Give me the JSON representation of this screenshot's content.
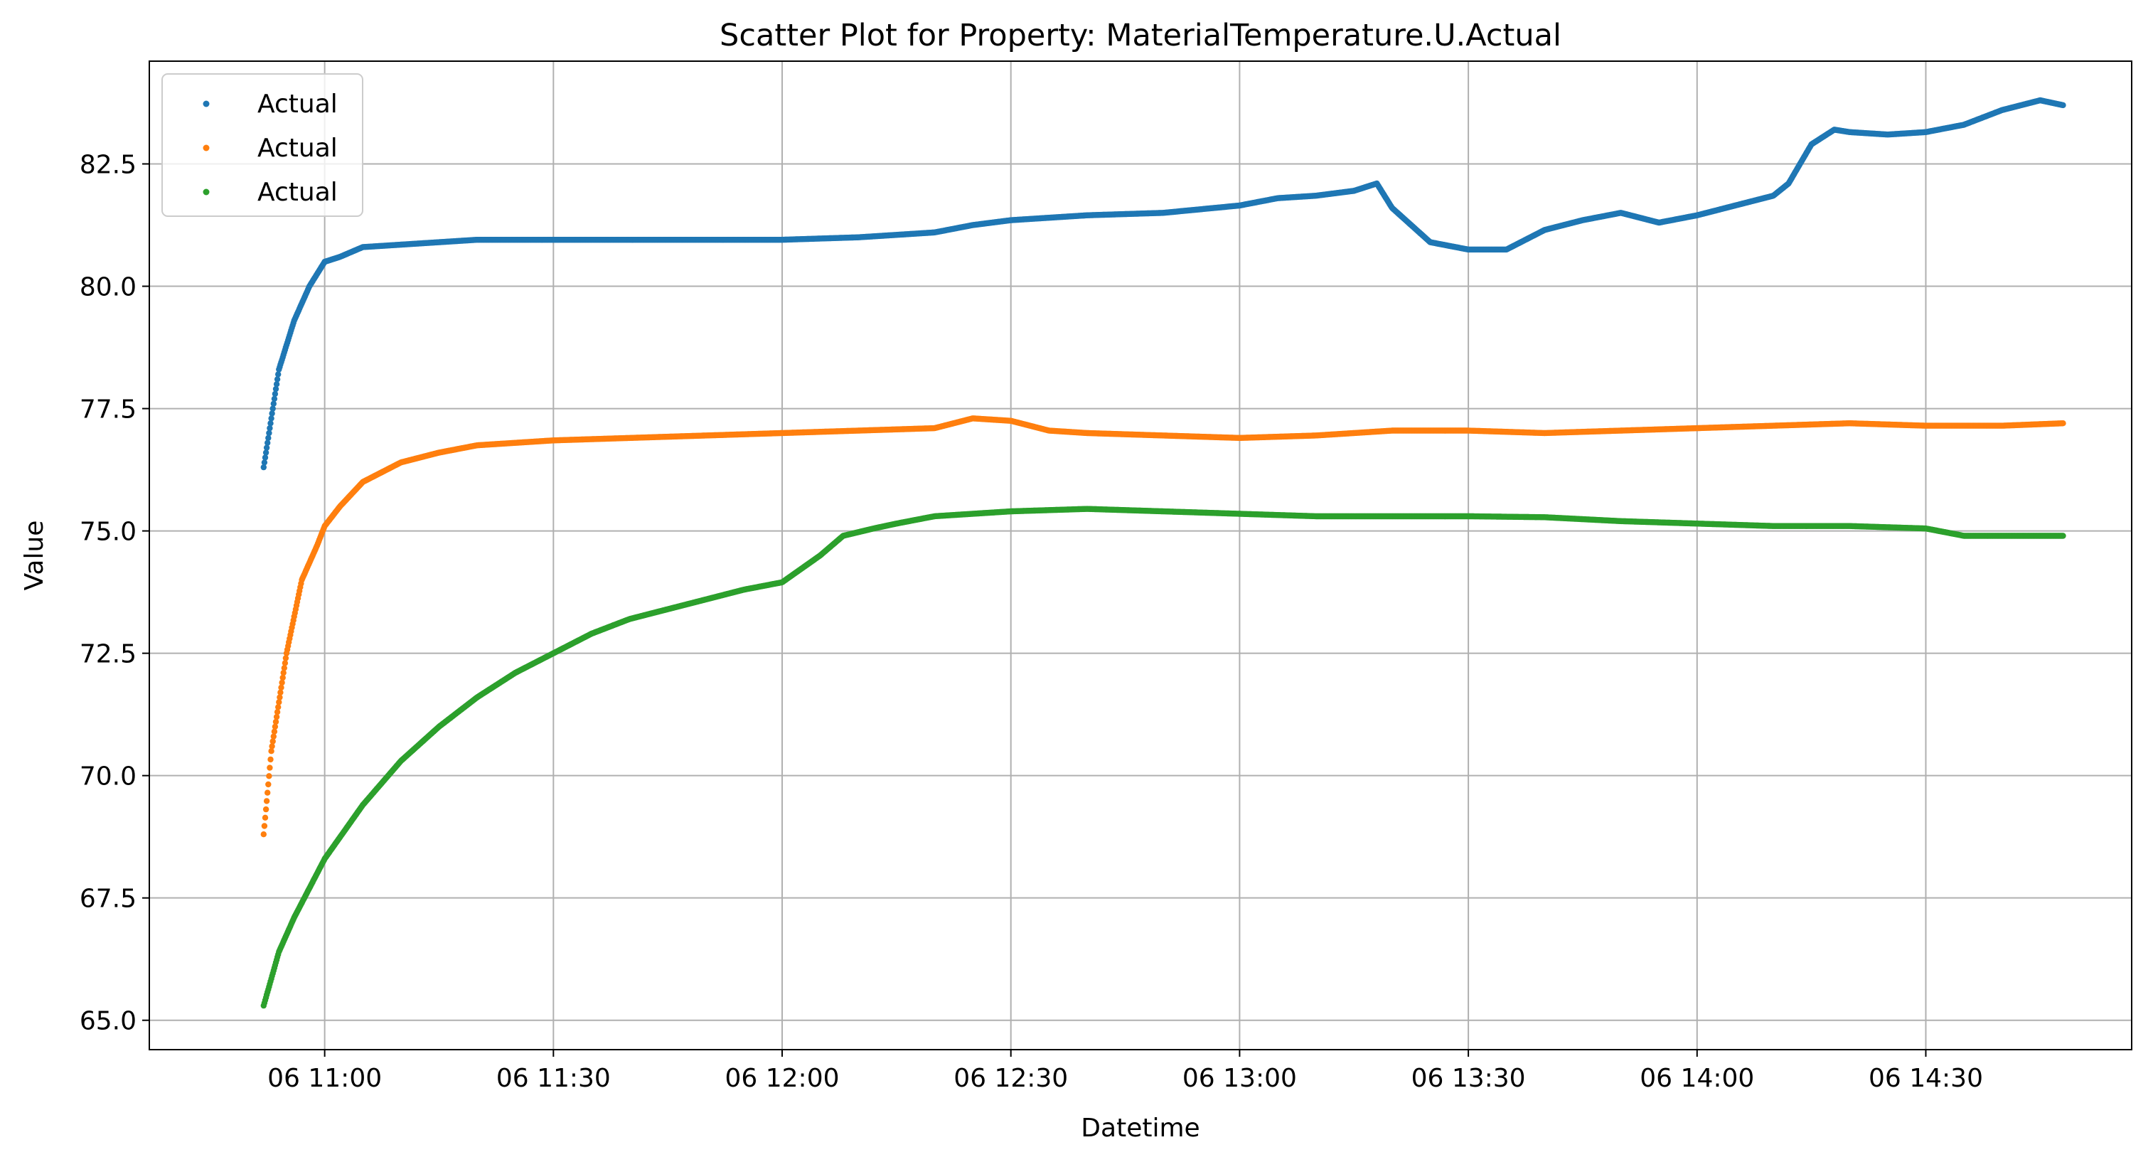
{
  "chart_data": {
    "type": "scatter",
    "title": "Scatter Plot for Property: MaterialTemperature.U.Actual",
    "xlabel": "Datetime",
    "ylabel": "Value",
    "x_tick_labels": [
      "06 11:00",
      "06 11:30",
      "06 12:00",
      "06 12:30",
      "06 13:00",
      "06 13:30",
      "06 14:00",
      "06 14:30"
    ],
    "x_ticks": [
      "10:52",
      "11:00",
      "11:30",
      "12:00",
      "12:30",
      "13:00",
      "13:30",
      "14:00",
      "14:30",
      "14:48"
    ],
    "xlim": [
      "10:37",
      "14:57"
    ],
    "ylim": [
      64.4,
      84.6
    ],
    "y_ticks": [
      65.0,
      67.5,
      70.0,
      72.5,
      75.0,
      77.5,
      80.0,
      82.5
    ],
    "y_tick_labels": [
      "65.0",
      "67.5",
      "70.0",
      "72.5",
      "75.0",
      "77.5",
      "80.0",
      "82.5"
    ],
    "grid": true,
    "legend_position": "upper-left",
    "series": [
      {
        "name": "Actual",
        "color": "#1f77b4",
        "x": [
          "10:52",
          "10:54",
          "10:56",
          "10:58",
          "11:00",
          "11:02",
          "11:05",
          "11:10",
          "11:20",
          "11:30",
          "11:40",
          "11:50",
          "12:00",
          "12:10",
          "12:15",
          "12:20",
          "12:25",
          "12:30",
          "12:35",
          "12:40",
          "12:50",
          "13:00",
          "13:05",
          "13:10",
          "13:15",
          "13:18",
          "13:20",
          "13:25",
          "13:30",
          "13:35",
          "13:40",
          "13:45",
          "13:50",
          "13:55",
          "14:00",
          "14:05",
          "14:10",
          "14:12",
          "14:15",
          "14:18",
          "14:20",
          "14:25",
          "14:30",
          "14:35",
          "14:40",
          "14:45",
          "14:48"
        ],
        "y": [
          76.3,
          78.3,
          79.3,
          80.0,
          80.5,
          80.6,
          80.8,
          80.85,
          80.95,
          80.95,
          80.95,
          80.95,
          80.95,
          81.0,
          81.05,
          81.1,
          81.25,
          81.35,
          81.4,
          81.45,
          81.5,
          81.65,
          81.8,
          81.85,
          81.95,
          82.1,
          81.6,
          80.9,
          80.75,
          80.75,
          81.15,
          81.35,
          81.5,
          81.3,
          81.45,
          81.65,
          81.85,
          82.1,
          82.9,
          83.2,
          83.15,
          83.1,
          83.15,
          83.3,
          83.6,
          83.8,
          83.7
        ]
      },
      {
        "name": "Actual",
        "color": "#ff7f0e",
        "x": [
          "10:52",
          "10:53",
          "10:55",
          "10:57",
          "10:59",
          "11:00",
          "11:02",
          "11:05",
          "11:10",
          "11:15",
          "11:20",
          "11:30",
          "11:40",
          "11:50",
          "12:00",
          "12:10",
          "12:20",
          "12:25",
          "12:30",
          "12:35",
          "12:40",
          "12:50",
          "13:00",
          "13:10",
          "13:15",
          "13:20",
          "13:30",
          "13:40",
          "13:50",
          "14:00",
          "14:10",
          "14:20",
          "14:30",
          "14:40",
          "14:48"
        ],
        "y": [
          68.8,
          70.5,
          72.5,
          74.0,
          74.7,
          75.1,
          75.5,
          76.0,
          76.4,
          76.6,
          76.75,
          76.85,
          76.9,
          76.95,
          77.0,
          77.05,
          77.1,
          77.3,
          77.25,
          77.05,
          77.0,
          76.95,
          76.9,
          76.95,
          77.0,
          77.05,
          77.05,
          77.0,
          77.05,
          77.1,
          77.15,
          77.2,
          77.15,
          77.15,
          77.2
        ]
      },
      {
        "name": "Actual",
        "color": "#2ca02c",
        "x": [
          "10:52",
          "10:54",
          "10:56",
          "10:58",
          "11:00",
          "11:05",
          "11:10",
          "11:15",
          "11:20",
          "11:25",
          "11:30",
          "11:35",
          "11:40",
          "11:45",
          "11:50",
          "11:55",
          "12:00",
          "12:05",
          "12:08",
          "12:12",
          "12:15",
          "12:20",
          "12:30",
          "12:40",
          "12:50",
          "13:00",
          "13:10",
          "13:20",
          "13:30",
          "13:40",
          "13:50",
          "14:00",
          "14:10",
          "14:20",
          "14:30",
          "14:35",
          "14:48"
        ],
        "y": [
          65.3,
          66.4,
          67.1,
          67.7,
          68.3,
          69.4,
          70.3,
          71.0,
          71.6,
          72.1,
          72.5,
          72.9,
          73.2,
          73.4,
          73.6,
          73.8,
          73.95,
          74.5,
          74.9,
          75.05,
          75.15,
          75.3,
          75.4,
          75.45,
          75.4,
          75.35,
          75.3,
          75.3,
          75.3,
          75.28,
          75.2,
          75.15,
          75.1,
          75.1,
          75.05,
          74.9,
          74.9
        ]
      }
    ]
  }
}
